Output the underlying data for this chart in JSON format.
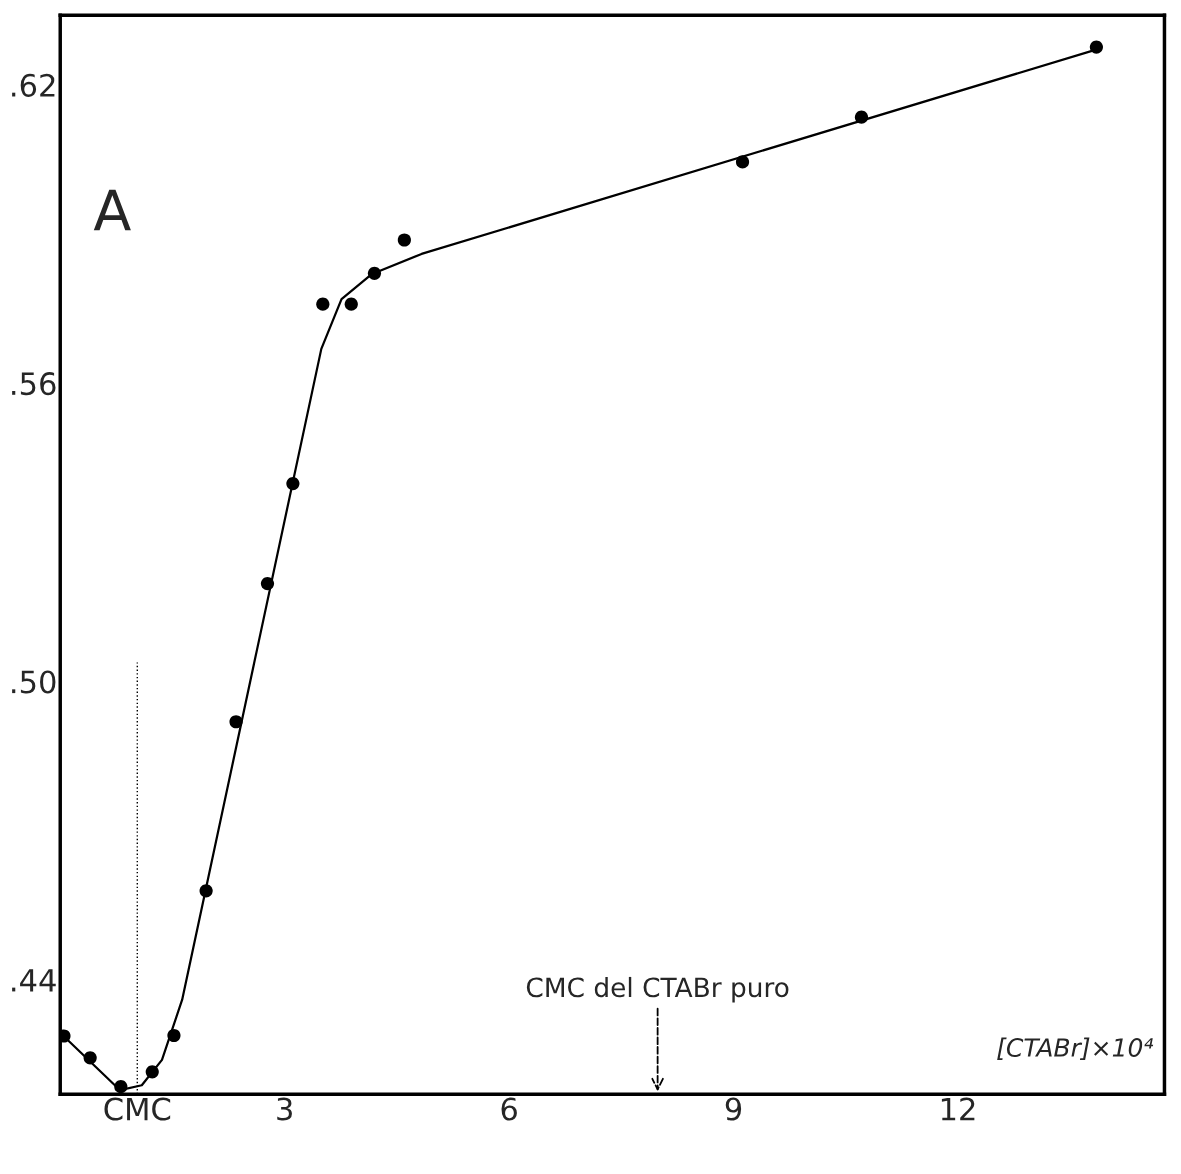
{
  "chart_data": {
    "type": "scatter",
    "xlabel": "[CTABr]×10⁴",
    "xlim": [
      0,
      14.76
    ],
    "ylim": [
      0.417,
      0.634
    ],
    "xticks": [
      {
        "value": 1.03,
        "label": "CMC"
      },
      3,
      6,
      9,
      12
    ],
    "yticks": [
      {
        "value": 0.44,
        "label": ".44"
      },
      {
        "value": 0.5,
        "label": ".50"
      },
      {
        "value": 0.56,
        "label": ".56"
      },
      {
        "value": 0.62,
        "label": ".62"
      }
    ],
    "series": [
      {
        "color": "#000000",
        "marker": "circle",
        "x": [
          0.05,
          0.4,
          0.81,
          1.23,
          1.52,
          1.95,
          2.35,
          2.77,
          3.11,
          3.51,
          3.89,
          4.2,
          4.6,
          9.12,
          10.71,
          13.85
        ],
        "values": [
          0.4287,
          0.4243,
          0.4185,
          0.4215,
          0.4288,
          0.4579,
          0.4919,
          0.5197,
          0.5398,
          0.5759,
          0.5759,
          0.5821,
          0.5888,
          0.6045,
          0.6135,
          0.6276
        ]
      },
      {
        "type": "line",
        "color": "#000000",
        "marker": "none",
        "line_style": "solid",
        "x": [
          0.03,
          0.8,
          1.09,
          1.36,
          1.63,
          3.49,
          3.76,
          4.16,
          4.83,
          13.89
        ],
        "values": [
          0.4289,
          0.4178,
          0.4188,
          0.4239,
          0.436,
          0.5669,
          0.5769,
          0.5819,
          0.586,
          0.6273
        ]
      }
    ],
    "ref_lines": [
      {
        "axis": "x",
        "value": 1.03,
        "color": "#000000",
        "line_style": "dotted"
      }
    ],
    "annotations": [
      {
        "text": "A"
      },
      "CMC del CTABr puro"
    ],
    "grid": false,
    "legend": false
  }
}
